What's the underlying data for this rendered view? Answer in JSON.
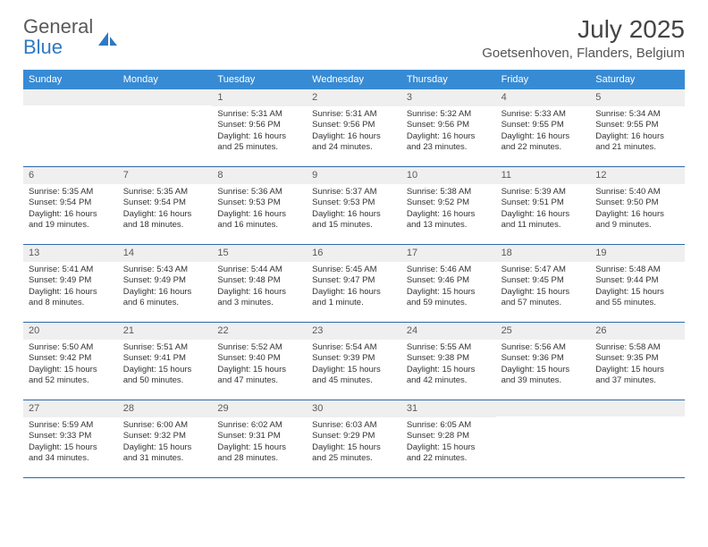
{
  "brand": {
    "name_top": "General",
    "name_bottom": "Blue",
    "logo_color": "#2f79c3",
    "text_color": "#5a5a5a"
  },
  "header": {
    "month_title": "July 2025",
    "location": "Goetsenhoven, Flanders, Belgium"
  },
  "calendar": {
    "weekday_header_bg": "#378bd4",
    "weekday_header_fg": "#ffffff",
    "daynum_bg": "#efefef",
    "rule_color": "#2d69a8",
    "weekdays": [
      "Sunday",
      "Monday",
      "Tuesday",
      "Wednesday",
      "Thursday",
      "Friday",
      "Saturday"
    ],
    "weeks": [
      [
        {
          "day": "",
          "sunrise": "",
          "sunset": "",
          "daylight1": "",
          "daylight2": ""
        },
        {
          "day": "",
          "sunrise": "",
          "sunset": "",
          "daylight1": "",
          "daylight2": ""
        },
        {
          "day": "1",
          "sunrise": "Sunrise: 5:31 AM",
          "sunset": "Sunset: 9:56 PM",
          "daylight1": "Daylight: 16 hours",
          "daylight2": "and 25 minutes."
        },
        {
          "day": "2",
          "sunrise": "Sunrise: 5:31 AM",
          "sunset": "Sunset: 9:56 PM",
          "daylight1": "Daylight: 16 hours",
          "daylight2": "and 24 minutes."
        },
        {
          "day": "3",
          "sunrise": "Sunrise: 5:32 AM",
          "sunset": "Sunset: 9:56 PM",
          "daylight1": "Daylight: 16 hours",
          "daylight2": "and 23 minutes."
        },
        {
          "day": "4",
          "sunrise": "Sunrise: 5:33 AM",
          "sunset": "Sunset: 9:55 PM",
          "daylight1": "Daylight: 16 hours",
          "daylight2": "and 22 minutes."
        },
        {
          "day": "5",
          "sunrise": "Sunrise: 5:34 AM",
          "sunset": "Sunset: 9:55 PM",
          "daylight1": "Daylight: 16 hours",
          "daylight2": "and 21 minutes."
        }
      ],
      [
        {
          "day": "6",
          "sunrise": "Sunrise: 5:35 AM",
          "sunset": "Sunset: 9:54 PM",
          "daylight1": "Daylight: 16 hours",
          "daylight2": "and 19 minutes."
        },
        {
          "day": "7",
          "sunrise": "Sunrise: 5:35 AM",
          "sunset": "Sunset: 9:54 PM",
          "daylight1": "Daylight: 16 hours",
          "daylight2": "and 18 minutes."
        },
        {
          "day": "8",
          "sunrise": "Sunrise: 5:36 AM",
          "sunset": "Sunset: 9:53 PM",
          "daylight1": "Daylight: 16 hours",
          "daylight2": "and 16 minutes."
        },
        {
          "day": "9",
          "sunrise": "Sunrise: 5:37 AM",
          "sunset": "Sunset: 9:53 PM",
          "daylight1": "Daylight: 16 hours",
          "daylight2": "and 15 minutes."
        },
        {
          "day": "10",
          "sunrise": "Sunrise: 5:38 AM",
          "sunset": "Sunset: 9:52 PM",
          "daylight1": "Daylight: 16 hours",
          "daylight2": "and 13 minutes."
        },
        {
          "day": "11",
          "sunrise": "Sunrise: 5:39 AM",
          "sunset": "Sunset: 9:51 PM",
          "daylight1": "Daylight: 16 hours",
          "daylight2": "and 11 minutes."
        },
        {
          "day": "12",
          "sunrise": "Sunrise: 5:40 AM",
          "sunset": "Sunset: 9:50 PM",
          "daylight1": "Daylight: 16 hours",
          "daylight2": "and 9 minutes."
        }
      ],
      [
        {
          "day": "13",
          "sunrise": "Sunrise: 5:41 AM",
          "sunset": "Sunset: 9:49 PM",
          "daylight1": "Daylight: 16 hours",
          "daylight2": "and 8 minutes."
        },
        {
          "day": "14",
          "sunrise": "Sunrise: 5:43 AM",
          "sunset": "Sunset: 9:49 PM",
          "daylight1": "Daylight: 16 hours",
          "daylight2": "and 6 minutes."
        },
        {
          "day": "15",
          "sunrise": "Sunrise: 5:44 AM",
          "sunset": "Sunset: 9:48 PM",
          "daylight1": "Daylight: 16 hours",
          "daylight2": "and 3 minutes."
        },
        {
          "day": "16",
          "sunrise": "Sunrise: 5:45 AM",
          "sunset": "Sunset: 9:47 PM",
          "daylight1": "Daylight: 16 hours",
          "daylight2": "and 1 minute."
        },
        {
          "day": "17",
          "sunrise": "Sunrise: 5:46 AM",
          "sunset": "Sunset: 9:46 PM",
          "daylight1": "Daylight: 15 hours",
          "daylight2": "and 59 minutes."
        },
        {
          "day": "18",
          "sunrise": "Sunrise: 5:47 AM",
          "sunset": "Sunset: 9:45 PM",
          "daylight1": "Daylight: 15 hours",
          "daylight2": "and 57 minutes."
        },
        {
          "day": "19",
          "sunrise": "Sunrise: 5:48 AM",
          "sunset": "Sunset: 9:44 PM",
          "daylight1": "Daylight: 15 hours",
          "daylight2": "and 55 minutes."
        }
      ],
      [
        {
          "day": "20",
          "sunrise": "Sunrise: 5:50 AM",
          "sunset": "Sunset: 9:42 PM",
          "daylight1": "Daylight: 15 hours",
          "daylight2": "and 52 minutes."
        },
        {
          "day": "21",
          "sunrise": "Sunrise: 5:51 AM",
          "sunset": "Sunset: 9:41 PM",
          "daylight1": "Daylight: 15 hours",
          "daylight2": "and 50 minutes."
        },
        {
          "day": "22",
          "sunrise": "Sunrise: 5:52 AM",
          "sunset": "Sunset: 9:40 PM",
          "daylight1": "Daylight: 15 hours",
          "daylight2": "and 47 minutes."
        },
        {
          "day": "23",
          "sunrise": "Sunrise: 5:54 AM",
          "sunset": "Sunset: 9:39 PM",
          "daylight1": "Daylight: 15 hours",
          "daylight2": "and 45 minutes."
        },
        {
          "day": "24",
          "sunrise": "Sunrise: 5:55 AM",
          "sunset": "Sunset: 9:38 PM",
          "daylight1": "Daylight: 15 hours",
          "daylight2": "and 42 minutes."
        },
        {
          "day": "25",
          "sunrise": "Sunrise: 5:56 AM",
          "sunset": "Sunset: 9:36 PM",
          "daylight1": "Daylight: 15 hours",
          "daylight2": "and 39 minutes."
        },
        {
          "day": "26",
          "sunrise": "Sunrise: 5:58 AM",
          "sunset": "Sunset: 9:35 PM",
          "daylight1": "Daylight: 15 hours",
          "daylight2": "and 37 minutes."
        }
      ],
      [
        {
          "day": "27",
          "sunrise": "Sunrise: 5:59 AM",
          "sunset": "Sunset: 9:33 PM",
          "daylight1": "Daylight: 15 hours",
          "daylight2": "and 34 minutes."
        },
        {
          "day": "28",
          "sunrise": "Sunrise: 6:00 AM",
          "sunset": "Sunset: 9:32 PM",
          "daylight1": "Daylight: 15 hours",
          "daylight2": "and 31 minutes."
        },
        {
          "day": "29",
          "sunrise": "Sunrise: 6:02 AM",
          "sunset": "Sunset: 9:31 PM",
          "daylight1": "Daylight: 15 hours",
          "daylight2": "and 28 minutes."
        },
        {
          "day": "30",
          "sunrise": "Sunrise: 6:03 AM",
          "sunset": "Sunset: 9:29 PM",
          "daylight1": "Daylight: 15 hours",
          "daylight2": "and 25 minutes."
        },
        {
          "day": "31",
          "sunrise": "Sunrise: 6:05 AM",
          "sunset": "Sunset: 9:28 PM",
          "daylight1": "Daylight: 15 hours",
          "daylight2": "and 22 minutes."
        },
        {
          "day": "",
          "sunrise": "",
          "sunset": "",
          "daylight1": "",
          "daylight2": ""
        },
        {
          "day": "",
          "sunrise": "",
          "sunset": "",
          "daylight1": "",
          "daylight2": ""
        }
      ]
    ]
  }
}
